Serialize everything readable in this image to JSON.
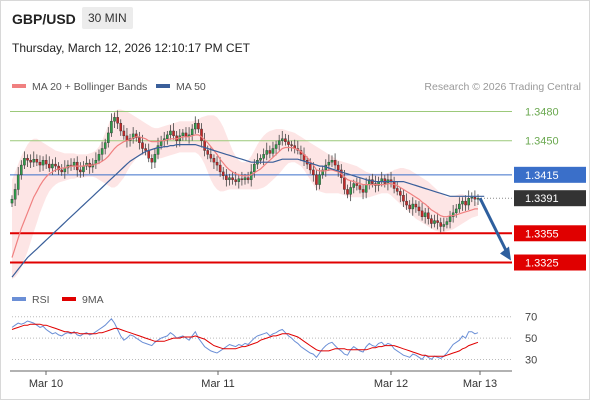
{
  "header": {
    "pair": "GBP/USD",
    "timeframe": "30 MIN",
    "datetime": "Thursday, March 12, 2026 12:10:17 PM CET"
  },
  "colors": {
    "ma20": "#f08080",
    "band": "#fde0e0",
    "ma50": "#3a5f9a",
    "resistance": "#9cc97a",
    "pivot": "#3a6fc9",
    "support": "#e00000",
    "last": "#333333",
    "rsi": "#6b8fd6",
    "rsi_ma": "#e00000",
    "arrow": "#2e5f9e"
  },
  "chart_data": [
    {
      "type": "candlestick",
      "legend": [
        {
          "name": "MA 20 + Bollinger Bands",
          "color": "#f08080"
        },
        {
          "name": "MA 50",
          "color": "#3a5f9a"
        }
      ],
      "legend_position": "top-left",
      "credit": "Research © 2026 Trading Central",
      "ylim": [
        1.3305,
        1.35
      ],
      "x_ticks": [
        "Mar 10",
        "Mar 11",
        "Mar 12",
        "Mar 13"
      ],
      "levels": [
        {
          "value": 1.348,
          "label": "1.3480",
          "kind": "resistance"
        },
        {
          "value": 1.345,
          "label": "1.3450",
          "kind": "resistance"
        },
        {
          "value": 1.3415,
          "label": "1.3415",
          "kind": "pivot"
        },
        {
          "value": 1.3391,
          "label": "1.3391",
          "kind": "last"
        },
        {
          "value": 1.3355,
          "label": "1.3355",
          "kind": "support"
        },
        {
          "value": 1.3325,
          "label": "1.3325",
          "kind": "support"
        }
      ],
      "close": [
        1.339,
        1.34,
        1.3415,
        1.3425,
        1.3432,
        1.343,
        1.3428,
        1.3431,
        1.3428,
        1.3425,
        1.343,
        1.3426,
        1.3422,
        1.3426,
        1.3424,
        1.342,
        1.3418,
        1.3422,
        1.3425,
        1.3424,
        1.3428,
        1.342,
        1.3418,
        1.3424,
        1.3427,
        1.3423,
        1.3426,
        1.343,
        1.3436,
        1.3442,
        1.3448,
        1.3458,
        1.347,
        1.3474,
        1.3468,
        1.346,
        1.3455,
        1.345,
        1.3452,
        1.3457,
        1.3453,
        1.3448,
        1.3442,
        1.344,
        1.3432,
        1.3428,
        1.3436,
        1.3445,
        1.345,
        1.3452,
        1.3456,
        1.346,
        1.3455,
        1.345,
        1.3455,
        1.3458,
        1.3454,
        1.3456,
        1.3462,
        1.3468,
        1.3462,
        1.345,
        1.344,
        1.3436,
        1.3432,
        1.3428,
        1.3425,
        1.3418,
        1.3414,
        1.341,
        1.3412,
        1.341,
        1.3408,
        1.3411,
        1.341,
        1.3412,
        1.341,
        1.3418,
        1.3426,
        1.343,
        1.3432,
        1.3436,
        1.344,
        1.3437,
        1.3442,
        1.3446,
        1.345,
        1.3452,
        1.3449,
        1.3446,
        1.3445,
        1.3442,
        1.344,
        1.3436,
        1.343,
        1.3426,
        1.342,
        1.3415,
        1.3405,
        1.3415,
        1.342,
        1.3425,
        1.3428,
        1.343,
        1.3425,
        1.342,
        1.3412,
        1.34,
        1.3395,
        1.3402,
        1.3406,
        1.3404,
        1.34,
        1.3397,
        1.3405,
        1.341,
        1.3406,
        1.3404,
        1.3408,
        1.3411,
        1.3406,
        1.341,
        1.3408,
        1.3401,
        1.3398,
        1.3394,
        1.3388,
        1.3384,
        1.338,
        1.3385,
        1.3382,
        1.3378,
        1.3372,
        1.3376,
        1.337,
        1.3365,
        1.3368,
        1.3366,
        1.3362,
        1.3364,
        1.3367,
        1.3372,
        1.3376,
        1.338,
        1.3385,
        1.3388,
        1.3384,
        1.3391,
        1.3392,
        1.339,
        1.3391
      ],
      "ma20": [
        1.333,
        1.334,
        1.335,
        1.336,
        1.3368,
        1.3376,
        1.3384,
        1.3392,
        1.3398,
        1.3404,
        1.3409,
        1.3413,
        1.3416,
        1.3418,
        1.342,
        1.3421,
        1.3422,
        1.3422,
        1.3423,
        1.3424,
        1.3424,
        1.3424,
        1.3424,
        1.3424,
        1.3425,
        1.3425,
        1.3425,
        1.3426,
        1.3427,
        1.3429,
        1.3431,
        1.3434,
        1.3438,
        1.3442,
        1.3445,
        1.3447,
        1.3449,
        1.345,
        1.3451,
        1.3453,
        1.3454,
        1.3454,
        1.3453,
        1.3452,
        1.345,
        1.3449,
        1.3449,
        1.3449,
        1.345,
        1.345,
        1.3451,
        1.3452,
        1.3452,
        1.3452,
        1.3453,
        1.3454,
        1.3454,
        1.3454,
        1.3455,
        1.3456,
        1.3456,
        1.3454,
        1.3451,
        1.3448,
        1.3444,
        1.344,
        1.3436,
        1.3431,
        1.3427,
        1.3423,
        1.342,
        1.3418,
        1.3416,
        1.3415,
        1.3414,
        1.3414,
        1.3414,
        1.3415,
        1.3417,
        1.3419,
        1.3421,
        1.3424,
        1.3427,
        1.343,
        1.3433,
        1.3436,
        1.3439,
        1.3442,
        1.3443,
        1.3443,
        1.3443,
        1.3442,
        1.3441,
        1.3439,
        1.3436,
        1.3433,
        1.3429,
        1.3425,
        1.342,
        1.3419,
        1.3419,
        1.3419,
        1.342,
        1.342,
        1.3419,
        1.3418,
        1.3416,
        1.3413,
        1.341,
        1.3409,
        1.3408,
        1.3407,
        1.3406,
        1.3405,
        1.3405,
        1.3405,
        1.3405,
        1.3405,
        1.3405,
        1.3405,
        1.3405,
        1.3406,
        1.3406,
        1.3405,
        1.3404,
        1.3402,
        1.34,
        1.3398,
        1.3396,
        1.3394,
        1.3392,
        1.339,
        1.3387,
        1.3385,
        1.3382,
        1.3379,
        1.3377,
        1.3375,
        1.3373,
        1.3372,
        1.3372,
        1.3373,
        1.3373,
        1.3374,
        1.3375,
        1.3376,
        1.3377,
        1.3378,
        1.3379,
        1.338,
        1.338
      ],
      "band_upper": [
        1.341,
        1.3418,
        1.3426,
        1.3434,
        1.344,
        1.3446,
        1.345,
        1.3452,
        1.3452,
        1.345,
        1.3448,
        1.3446,
        1.3444,
        1.3442,
        1.344,
        1.3439,
        1.3438,
        1.3437,
        1.3437,
        1.3437,
        1.3437,
        1.3436,
        1.3436,
        1.3436,
        1.3436,
        1.3437,
        1.3438,
        1.344,
        1.3444,
        1.345,
        1.3458,
        1.3466,
        1.3474,
        1.348,
        1.3482,
        1.3482,
        1.3481,
        1.348,
        1.3478,
        1.3476,
        1.3474,
        1.3472,
        1.347,
        1.3468,
        1.3466,
        1.3464,
        1.3463,
        1.3463,
        1.3464,
        1.3465,
        1.3466,
        1.3467,
        1.3468,
        1.3469,
        1.347,
        1.347,
        1.347,
        1.347,
        1.347,
        1.3471,
        1.3472,
        1.3474,
        1.3475,
        1.3476,
        1.3476,
        1.3476,
        1.3474,
        1.347,
        1.3464,
        1.3456,
        1.3448,
        1.344,
        1.3434,
        1.343,
        1.3428,
        1.3428,
        1.343,
        1.3434,
        1.344,
        1.3446,
        1.3451,
        1.3455,
        1.3458,
        1.346,
        1.3461,
        1.3462,
        1.3462,
        1.3462,
        1.3461,
        1.346,
        1.3459,
        1.3458,
        1.3456,
        1.3454,
        1.3452,
        1.345,
        1.3448,
        1.3446,
        1.3444,
        1.3442,
        1.344,
        1.3438,
        1.3436,
        1.3434,
        1.3432,
        1.343,
        1.3429,
        1.3428,
        1.3427,
        1.3426,
        1.3425,
        1.3424,
        1.3422,
        1.342,
        1.3418,
        1.3417,
        1.3416,
        1.3416,
        1.3416,
        1.3416,
        1.3416,
        1.3417,
        1.3418,
        1.342,
        1.3421,
        1.3422,
        1.3422,
        1.3421,
        1.342,
        1.3418,
        1.3416,
        1.3414,
        1.3412,
        1.341,
        1.3408,
        1.3405,
        1.3402,
        1.3399,
        1.3396,
        1.3394,
        1.3392,
        1.3392,
        1.3393,
        1.3394,
        1.3395,
        1.3395,
        1.3394,
        1.3392,
        1.339,
        1.3388,
        1.3386
      ],
      "band_lower": [
        1.3308,
        1.331,
        1.3314,
        1.332,
        1.3328,
        1.3336,
        1.3346,
        1.3356,
        1.3366,
        1.3376,
        1.3384,
        1.3392,
        1.3398,
        1.3402,
        1.3405,
        1.3407,
        1.3408,
        1.3409,
        1.341,
        1.3411,
        1.3411,
        1.3412,
        1.3412,
        1.3412,
        1.3413,
        1.3413,
        1.3413,
        1.3412,
        1.341,
        1.3408,
        1.3406,
        1.3404,
        1.3402,
        1.3402,
        1.3404,
        1.3408,
        1.3412,
        1.3418,
        1.3424,
        1.3428,
        1.3432,
        1.3434,
        1.3435,
        1.3435,
        1.3434,
        1.3433,
        1.3432,
        1.3432,
        1.3432,
        1.3433,
        1.3434,
        1.3435,
        1.3436,
        1.3437,
        1.3438,
        1.3438,
        1.3438,
        1.3438,
        1.3438,
        1.3438,
        1.3436,
        1.3432,
        1.3426,
        1.3418,
        1.341,
        1.3404,
        1.34,
        1.3398,
        1.3398,
        1.3399,
        1.34,
        1.34,
        1.34,
        1.34,
        1.34,
        1.34,
        1.34,
        1.34,
        1.34,
        1.34,
        1.3401,
        1.3402,
        1.3404,
        1.3407,
        1.341,
        1.3413,
        1.3416,
        1.342,
        1.3424,
        1.3427,
        1.3428,
        1.3428,
        1.3426,
        1.3424,
        1.342,
        1.3415,
        1.341,
        1.3405,
        1.34,
        1.3398,
        1.3397,
        1.3396,
        1.3396,
        1.3396,
        1.3396,
        1.3396,
        1.3395,
        1.3394,
        1.3393,
        1.3392,
        1.3392,
        1.3392,
        1.3392,
        1.3392,
        1.3392,
        1.3392,
        1.3393,
        1.3394,
        1.3395,
        1.3396,
        1.3396,
        1.3396,
        1.3394,
        1.3391,
        1.3388,
        1.3385,
        1.3382,
        1.3379,
        1.3376,
        1.3373,
        1.337,
        1.3368,
        1.3366,
        1.3364,
        1.3362,
        1.336,
        1.3358,
        1.3357,
        1.3356,
        1.3356,
        1.3357,
        1.3358,
        1.3359,
        1.3361,
        1.3363,
        1.3365,
        1.3367,
        1.3369,
        1.3371,
        1.3372,
        1.3373
      ],
      "ma50": [
        1.331,
        1.3314,
        1.3318,
        1.3322,
        1.3326,
        1.333,
        1.3333,
        1.3336,
        1.3339,
        1.3342,
        1.3345,
        1.3348,
        1.3351,
        1.3354,
        1.3357,
        1.336,
        1.3363,
        1.3366,
        1.3369,
        1.3372,
        1.3375,
        1.3378,
        1.3381,
        1.3384,
        1.3387,
        1.339,
        1.3393,
        1.3396,
        1.3399,
        1.3402,
        1.3405,
        1.3408,
        1.3411,
        1.3414,
        1.3417,
        1.342,
        1.3423,
        1.3426,
        1.3429,
        1.3431,
        1.3433,
        1.3435,
        1.3437,
        1.3439,
        1.344,
        1.3441,
        1.3442,
        1.3443,
        1.3443,
        1.3444,
        1.3444,
        1.3445,
        1.3445,
        1.3446,
        1.3446,
        1.3446,
        1.3446,
        1.3446,
        1.3446,
        1.3446,
        1.3445,
        1.3444,
        1.3443,
        1.3442,
        1.3441,
        1.344,
        1.3439,
        1.3438,
        1.3437,
        1.3436,
        1.3435,
        1.3434,
        1.3433,
        1.3432,
        1.3431,
        1.343,
        1.3429,
        1.3428,
        1.3428,
        1.3428,
        1.3428,
        1.3428,
        1.3428,
        1.3428,
        1.3428,
        1.3429,
        1.343,
        1.3431,
        1.3431,
        1.3431,
        1.3431,
        1.3431,
        1.3431,
        1.343,
        1.3429,
        1.3428,
        1.3427,
        1.3426,
        1.3425,
        1.3424,
        1.3424,
        1.3423,
        1.3422,
        1.3421,
        1.342,
        1.3419,
        1.3418,
        1.3417,
        1.3416,
        1.3415,
        1.3414,
        1.3413,
        1.3412,
        1.3411,
        1.341,
        1.3409,
        1.3409,
        1.3408,
        1.3408,
        1.3408,
        1.3408,
        1.3408,
        1.3408,
        1.3408,
        1.3408,
        1.3408,
        1.3408,
        1.3407,
        1.3406,
        1.3405,
        1.3404,
        1.3403,
        1.3402,
        1.3401,
        1.34,
        1.3399,
        1.3398,
        1.3397,
        1.3396,
        1.3395,
        1.3394,
        1.3393,
        1.3393,
        1.3393,
        1.3393,
        1.3393,
        1.3393,
        1.3393,
        1.3393,
        1.3393,
        1.3393,
        1.3393,
        1.3393
      ]
    },
    {
      "type": "line",
      "legend": [
        {
          "name": "RSI",
          "color": "#6b8fd6"
        },
        {
          "name": "9MA",
          "color": "#e00000"
        }
      ],
      "ylim": [
        22,
        80
      ],
      "y_ticks": [
        70,
        50,
        30
      ],
      "rsi": [
        60,
        62,
        64,
        63,
        64,
        66,
        65,
        64,
        62,
        60,
        61,
        58,
        56,
        54,
        55,
        53,
        52,
        54,
        55,
        54,
        56,
        53,
        52,
        54,
        55,
        53,
        54,
        56,
        58,
        60,
        62,
        65,
        68,
        64,
        58,
        52,
        48,
        50,
        53,
        52,
        50,
        48,
        46,
        45,
        44,
        43,
        46,
        48,
        50,
        51,
        52,
        55,
        53,
        50,
        51,
        52,
        50,
        48,
        52,
        56,
        50,
        46,
        42,
        40,
        38,
        37,
        36,
        38,
        40,
        42,
        44,
        43,
        42,
        44,
        43,
        45,
        44,
        47,
        50,
        52,
        53,
        54,
        55,
        52,
        54,
        55,
        57,
        58,
        55,
        52,
        50,
        47,
        45,
        42,
        40,
        38,
        36,
        35,
        32,
        36,
        40,
        43,
        45,
        46,
        43,
        40,
        38,
        35,
        34,
        39,
        42,
        40,
        38,
        37,
        42,
        45,
        43,
        42,
        45,
        46,
        43,
        45,
        44,
        40,
        38,
        36,
        34,
        33,
        32,
        35,
        34,
        32,
        30,
        34,
        32,
        30,
        33,
        32,
        31,
        33,
        36,
        40,
        44,
        46,
        48,
        52,
        50,
        56,
        56,
        54,
        55
      ],
      "ma9": [
        58,
        59,
        60,
        61,
        62,
        62,
        63,
        63,
        63,
        63,
        62,
        62,
        61,
        60,
        59,
        58,
        57,
        56,
        56,
        55,
        55,
        55,
        54,
        54,
        54,
        54,
        54,
        54,
        55,
        55,
        56,
        57,
        58,
        59,
        59,
        58,
        57,
        56,
        55,
        54,
        53,
        52,
        51,
        50,
        49,
        48,
        47,
        47,
        47,
        47,
        48,
        49,
        50,
        50,
        50,
        51,
        51,
        51,
        51,
        52,
        51,
        50,
        49,
        47,
        45,
        43,
        42,
        41,
        40,
        40,
        40,
        40,
        40,
        41,
        42,
        42,
        43,
        44,
        45,
        46,
        48,
        49,
        50,
        51,
        52,
        52,
        53,
        54,
        54,
        54,
        53,
        52,
        51,
        49,
        47,
        45,
        43,
        41,
        39,
        38,
        38,
        38,
        38,
        39,
        40,
        40,
        40,
        40,
        39,
        39,
        39,
        39,
        39,
        39,
        39,
        40,
        41,
        41,
        42,
        42,
        43,
        43,
        43,
        43,
        42,
        41,
        40,
        39,
        38,
        37,
        36,
        35,
        34,
        34,
        33,
        33,
        33,
        33,
        33,
        33,
        34,
        35,
        36,
        37,
        38,
        40,
        41,
        43,
        44,
        45,
        46
      ]
    }
  ]
}
